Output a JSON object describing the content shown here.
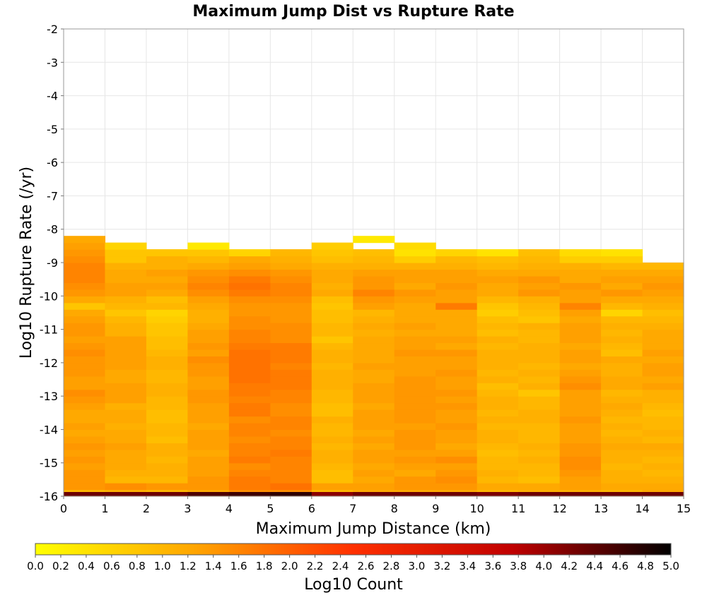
{
  "chart_data": {
    "type": "heatmap",
    "title": "Maximum Jump Dist vs Rupture Rate",
    "xlabel": "Maximum Jump Distance (km)",
    "ylabel": "Log10 Rupture Rate (/yr)",
    "colorbar_label": "Log10 Count",
    "xlim": [
      0,
      15
    ],
    "ylim": [
      -16,
      -2
    ],
    "x_ticks": [
      "0",
      "1",
      "2",
      "3",
      "4",
      "5",
      "6",
      "7",
      "8",
      "9",
      "10",
      "11",
      "12",
      "13",
      "14",
      "15"
    ],
    "y_ticks": [
      "-2",
      "-3",
      "-4",
      "-5",
      "-6",
      "-7",
      "-8",
      "-9",
      "-10",
      "-11",
      "-12",
      "-13",
      "-14",
      "-15",
      "-16"
    ],
    "colorbar_range": [
      0,
      5
    ],
    "colorbar_ticks": [
      "0.0",
      "0.2",
      "0.4",
      "0.6",
      "0.8",
      "1.0",
      "1.2",
      "1.4",
      "1.6",
      "1.8",
      "2.0",
      "2.2",
      "2.4",
      "2.6",
      "2.8",
      "3.0",
      "3.2",
      "3.4",
      "3.6",
      "3.8",
      "4.0",
      "4.2",
      "4.4",
      "4.6",
      "4.8",
      "5.0"
    ],
    "colormap": [
      "#ffff00",
      "#ffa500",
      "#ff3000",
      "#c00000",
      "#000000"
    ],
    "x_bin_width_km": 1,
    "y_bin_width_log10": 0.2,
    "y_bin_start": -16,
    "cells": [
      [
        1.0,
        1.1,
        1.0,
        1.2,
        1.5,
        1.5,
        1.0,
        1.2,
        1.2,
        1.2,
        1.0,
        1.1,
        1.1,
        1.0,
        1.2
      ],
      [
        1.4,
        1.5,
        1.4,
        1.4,
        1.7,
        1.8,
        1.3,
        1.3,
        1.4,
        1.4,
        1.2,
        1.2,
        1.3,
        1.2,
        1.2
      ],
      [
        1.4,
        1.0,
        1.0,
        1.4,
        1.7,
        1.6,
        0.9,
        1.2,
        1.4,
        1.5,
        1.0,
        0.9,
        1.3,
        1.1,
        1.1
      ],
      [
        1.4,
        1.1,
        1.1,
        1.3,
        1.6,
        1.6,
        0.9,
        1.3,
        1.2,
        1.4,
        1.1,
        1.0,
        1.4,
        1.1,
        1.0
      ],
      [
        1.3,
        1.2,
        1.1,
        1.3,
        1.5,
        1.6,
        1.0,
        1.2,
        1.3,
        1.3,
        1.0,
        1.0,
        1.5,
        1.0,
        1.1
      ],
      [
        1.4,
        1.2,
        1.0,
        1.3,
        1.7,
        1.6,
        1.1,
        1.3,
        1.4,
        1.5,
        1.0,
        1.1,
        1.5,
        1.1,
        1.0
      ],
      [
        1.3,
        1.2,
        1.1,
        1.2,
        1.6,
        1.7,
        1.1,
        1.3,
        1.3,
        1.3,
        0.9,
        1.0,
        1.4,
        1.1,
        1.1
      ],
      [
        1.4,
        1.3,
        1.1,
        1.3,
        1.6,
        1.6,
        1.0,
        1.2,
        1.4,
        1.2,
        1.0,
        1.1,
        1.4,
        1.2,
        1.2
      ],
      [
        1.3,
        1.2,
        0.9,
        1.3,
        1.5,
        1.6,
        1.1,
        1.3,
        1.4,
        1.3,
        1.1,
        1.0,
        1.3,
        1.1,
        1.0
      ],
      [
        1.2,
        1.2,
        1.0,
        1.3,
        1.6,
        1.5,
        1.0,
        1.2,
        1.4,
        1.3,
        1.1,
        1.0,
        1.3,
        1.0,
        1.1
      ],
      [
        1.3,
        1.1,
        1.0,
        1.2,
        1.6,
        1.6,
        1.0,
        1.3,
        1.3,
        1.4,
        1.0,
        1.0,
        1.3,
        1.1,
        1.0
      ],
      [
        1.2,
        1.2,
        0.9,
        1.3,
        1.5,
        1.6,
        1.1,
        1.3,
        1.4,
        1.3,
        1.1,
        1.1,
        1.4,
        1.0,
        1.0
      ],
      [
        1.2,
        1.2,
        0.9,
        1.3,
        1.7,
        1.5,
        0.9,
        1.3,
        1.4,
        1.3,
        1.0,
        1.1,
        1.3,
        1.1,
        0.9
      ],
      [
        1.3,
        1.1,
        1.0,
        1.3,
        1.7,
        1.5,
        0.9,
        1.2,
        1.4,
        1.4,
        1.1,
        1.0,
        1.3,
        1.2,
        1.0
      ],
      [
        1.4,
        1.3,
        1.0,
        1.4,
        1.6,
        1.6,
        1.0,
        1.3,
        1.4,
        1.3,
        1.1,
        1.0,
        1.3,
        1.1,
        1.1
      ],
      [
        1.5,
        1.3,
        1.1,
        1.4,
        1.7,
        1.6,
        1.0,
        1.3,
        1.4,
        1.4,
        1.0,
        0.8,
        1.3,
        1.0,
        1.1
      ],
      [
        1.3,
        1.3,
        1.1,
        1.3,
        1.7,
        1.7,
        1.1,
        1.3,
        1.4,
        1.3,
        0.9,
        1.1,
        1.5,
        1.2,
        1.3
      ],
      [
        1.3,
        1.2,
        1.0,
        1.3,
        1.8,
        1.7,
        1.1,
        1.2,
        1.4,
        1.3,
        1.1,
        1.0,
        1.4,
        1.2,
        1.2
      ],
      [
        1.4,
        1.2,
        1.0,
        1.4,
        1.8,
        1.7,
        1.1,
        1.2,
        1.3,
        1.4,
        1.0,
        1.1,
        1.3,
        1.1,
        1.3
      ],
      [
        1.4,
        1.3,
        1.1,
        1.4,
        1.8,
        1.6,
        1.0,
        1.3,
        1.3,
        1.3,
        1.1,
        1.0,
        1.2,
        1.1,
        1.3
      ],
      [
        1.4,
        1.3,
        1.1,
        1.5,
        1.8,
        1.7,
        1.1,
        1.2,
        1.3,
        1.3,
        1.1,
        1.1,
        1.3,
        1.2,
        1.2
      ],
      [
        1.5,
        1.3,
        1.0,
        1.3,
        1.8,
        1.7,
        1.1,
        1.2,
        1.4,
        1.4,
        1.1,
        1.1,
        1.3,
        0.9,
        1.3
      ],
      [
        1.4,
        1.3,
        0.9,
        1.4,
        1.7,
        1.7,
        1.0,
        1.2,
        1.3,
        1.2,
        1.0,
        1.1,
        1.2,
        1.0,
        1.2
      ],
      [
        1.3,
        1.3,
        0.9,
        1.3,
        1.6,
        1.5,
        0.8,
        1.2,
        1.3,
        1.3,
        1.1,
        1.0,
        1.3,
        1.1,
        1.2
      ],
      [
        1.4,
        1.1,
        0.8,
        1.3,
        1.6,
        1.5,
        1.0,
        1.1,
        1.2,
        1.2,
        0.9,
        1.0,
        1.3,
        1.0,
        1.2
      ],
      [
        1.4,
        1.1,
        0.8,
        1.2,
        1.5,
        1.5,
        1.0,
        1.2,
        1.3,
        1.2,
        1.0,
        1.1,
        1.3,
        1.1,
        1.1
      ],
      [
        1.3,
        1.0,
        0.7,
        1.1,
        1.5,
        1.4,
        0.9,
        1.1,
        1.2,
        1.2,
        0.9,
        0.8,
        1.2,
        1.0,
        1.0
      ],
      [
        1.2,
        0.8,
        0.6,
        1.1,
        1.4,
        1.4,
        0.9,
        1.0,
        1.2,
        1.2,
        0.7,
        0.9,
        1.3,
        0.6,
        0.9
      ],
      [
        0.8,
        1.0,
        1.0,
        1.2,
        1.4,
        1.4,
        0.8,
        1.3,
        1.2,
        1.7,
        0.8,
        1.0,
        1.6,
        1.0,
        1.1
      ],
      [
        1.2,
        1.1,
        0.9,
        1.3,
        1.5,
        1.5,
        0.9,
        1.4,
        1.3,
        1.3,
        1.0,
        1.1,
        1.3,
        1.2,
        1.2
      ],
      [
        1.4,
        1.3,
        1.2,
        1.5,
        1.7,
        1.6,
        1.2,
        1.6,
        1.4,
        1.3,
        1.2,
        1.4,
        1.3,
        1.4,
        1.3
      ],
      [
        1.5,
        1.3,
        1.3,
        1.6,
        1.8,
        1.6,
        1.1,
        1.4,
        1.2,
        1.4,
        1.2,
        1.3,
        1.4,
        1.2,
        1.4
      ],
      [
        1.6,
        1.2,
        1.2,
        1.5,
        1.7,
        1.5,
        1.2,
        1.4,
        1.3,
        1.3,
        1.3,
        1.4,
        1.2,
        1.3,
        1.3
      ],
      [
        1.6,
        1.2,
        1.3,
        1.4,
        1.5,
        1.4,
        1.2,
        1.3,
        1.3,
        1.3,
        1.2,
        1.2,
        1.2,
        1.2,
        1.2
      ],
      [
        1.6,
        1.1,
        1.1,
        1.2,
        1.3,
        1.2,
        1.1,
        1.1,
        1.1,
        1.1,
        1.0,
        1.1,
        1.1,
        1.0,
        1.0
      ],
      [
        1.5,
        0.8,
        1.1,
        1.0,
        1.2,
        1.1,
        0.9,
        1.0,
        0.7,
        1.0,
        0.9,
        1.0,
        0.7,
        0.7,
        null
      ],
      [
        1.4,
        0.8,
        0.8,
        0.8,
        0.6,
        1.0,
        0.8,
        0.9,
        0.4,
        0.6,
        0.4,
        0.9,
        0.5,
        0.4,
        null
      ],
      [
        1.3,
        0.6,
        null,
        0.3,
        null,
        null,
        0.7,
        null,
        0.5,
        null,
        null,
        null,
        null,
        null,
        null
      ],
      [
        1.2,
        null,
        null,
        null,
        null,
        null,
        null,
        0.3,
        null,
        null,
        null,
        null,
        null,
        null,
        null
      ]
    ],
    "bottom_band": [
      4.3,
      4.3,
      4.3,
      4.5,
      4.6,
      4.7,
      4.1,
      4.3,
      4.3,
      4.3,
      4.2,
      4.3,
      4.3,
      4.3,
      4.3
    ]
  }
}
